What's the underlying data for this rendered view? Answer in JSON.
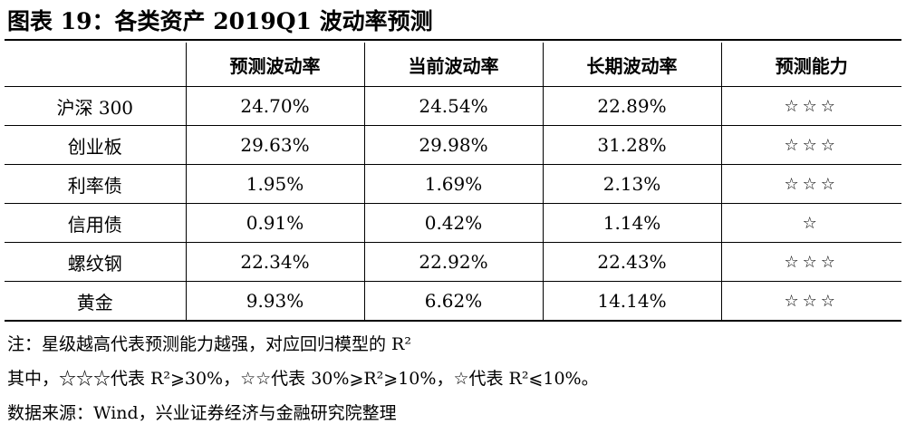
{
  "title": "图表 19：各类资产 2019Q1 波动率预测",
  "table": {
    "headers": [
      "",
      "预测波动率",
      "当前波动率",
      "长期波动率",
      "预测能力"
    ],
    "rows": [
      {
        "asset": "沪深 300",
        "forecast": "24.70%",
        "current": "24.54%",
        "longterm": "22.89%",
        "rating": "☆☆☆"
      },
      {
        "asset": "创业板",
        "forecast": "29.63%",
        "current": "29.98%",
        "longterm": "31.28%",
        "rating": "☆☆☆"
      },
      {
        "asset": "利率债",
        "forecast": "1.95%",
        "current": "1.69%",
        "longterm": "2.13%",
        "rating": "☆☆☆"
      },
      {
        "asset": "信用债",
        "forecast": "0.91%",
        "current": "0.42%",
        "longterm": "1.14%",
        "rating": "☆"
      },
      {
        "asset": "螺纹钢",
        "forecast": "22.34%",
        "current": "22.92%",
        "longterm": "22.43%",
        "rating": "☆☆☆"
      },
      {
        "asset": "黄金",
        "forecast": "9.93%",
        "current": "6.62%",
        "longterm": "14.14%",
        "rating": "☆☆☆"
      }
    ]
  },
  "notes": {
    "line1": "注：星级越高代表预测能力越强，对应回归模型的 R²",
    "line2": "其中，☆☆☆代表 R²⩾30%，☆☆代表 30%⩾R²⩾10%，☆代表 R²⩽10%。",
    "source": "数据来源：Wind，兴业证券经济与金融研究院整理"
  }
}
